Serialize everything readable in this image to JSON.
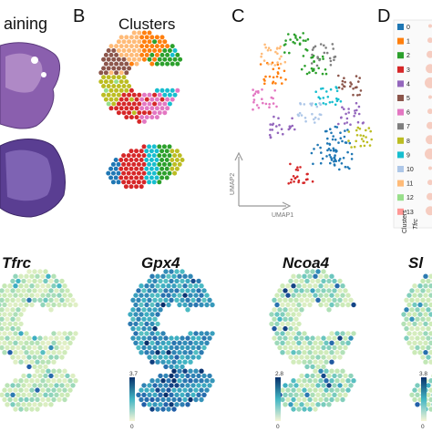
{
  "panels": {
    "A": {
      "title": "aining"
    },
    "B": {
      "letter": "B",
      "title": "Clusters"
    },
    "C": {
      "letter": "C",
      "axis_y": "UMAP2",
      "axis_x": "UMAP1"
    },
    "D": {
      "letter": "D",
      "clusters_label": "Clusters",
      "gene_label": "Tfrc"
    }
  },
  "cluster_legend": [
    {
      "label": "0",
      "color": "#1f77b4"
    },
    {
      "label": "1",
      "color": "#ff7f0e"
    },
    {
      "label": "2",
      "color": "#2ca02c"
    },
    {
      "label": "3",
      "color": "#d62728"
    },
    {
      "label": "4",
      "color": "#9467bd"
    },
    {
      "label": "5",
      "color": "#8c564b"
    },
    {
      "label": "6",
      "color": "#e377c2"
    },
    {
      "label": "7",
      "color": "#7f7f7f"
    },
    {
      "label": "8",
      "color": "#bcbd22"
    },
    {
      "label": "9",
      "color": "#17becf"
    },
    {
      "label": "10",
      "color": "#aec7e8"
    },
    {
      "label": "11",
      "color": "#ffbb78"
    },
    {
      "label": "12",
      "color": "#98df8a"
    },
    {
      "label": "13",
      "color": "#ff9896"
    }
  ],
  "genes": [
    {
      "name": "Tfrc"
    },
    {
      "name": "Gpx4",
      "scale_max": "3.7",
      "scale_min": "0"
    },
    {
      "name": "Ncoa4",
      "scale_max": "2.8",
      "scale_min": "0"
    },
    {
      "name": "Sl",
      "scale_max": "3.8",
      "scale_min": "0"
    }
  ],
  "colors": {
    "he_stain": "#7a4f9e",
    "he_light": "#c9a7d6",
    "expr_low": "#f7f5d6",
    "expr_mid": "#7fcdbb",
    "expr_high": "#08306b"
  }
}
